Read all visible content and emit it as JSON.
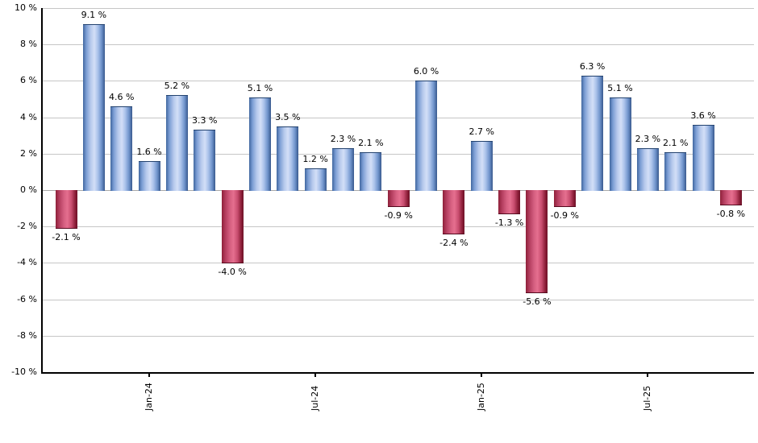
{
  "chart_data": {
    "type": "bar",
    "title": "",
    "unit": "%",
    "ylim": [
      -10,
      10
    ],
    "ytick_step": 2,
    "grid": true,
    "legend": "none",
    "yticks": [
      {
        "value": 10,
        "label": "10 %"
      },
      {
        "value": 8,
        "label": "8 %"
      },
      {
        "value": 6,
        "label": "6 %"
      },
      {
        "value": 4,
        "label": "4 %"
      },
      {
        "value": 2,
        "label": "2 %"
      },
      {
        "value": 0,
        "label": "0 %"
      },
      {
        "value": -2,
        "label": "-2 %"
      },
      {
        "value": -4,
        "label": "-4 %"
      },
      {
        "value": -6,
        "label": "-6 %"
      },
      {
        "value": -8,
        "label": "-8 %"
      },
      {
        "value": -10,
        "label": "-10 %"
      }
    ],
    "values": [
      -2.1,
      9.1,
      4.6,
      1.6,
      5.2,
      3.3,
      -4.0,
      5.1,
      3.5,
      1.2,
      2.3,
      2.1,
      -0.9,
      6.0,
      -2.4,
      2.7,
      -1.3,
      -5.6,
      -0.9,
      6.3,
      5.1,
      2.3,
      2.1,
      3.6,
      -0.8
    ],
    "bar_labels": [
      "-2.1 %",
      "9.1 %",
      "4.6 %",
      "1.6 %",
      "5.2 %",
      "3.3 %",
      "-4.0 %",
      "5.1 %",
      "3.5 %",
      "1.2 %",
      "2.3 %",
      "2.1 %",
      "-0.9 %",
      "6.0 %",
      "-2.4 %",
      "2.7 %",
      "-1.3 %",
      "-5.6 %",
      "-0.9 %",
      "6.3 %",
      "5.1 %",
      "2.3 %",
      "2.1 %",
      "3.6 %",
      "-0.8 %"
    ],
    "xticks": [
      {
        "label": "Jan-24",
        "bar_index": 3
      },
      {
        "label": "Jul-24",
        "bar_index": 9
      },
      {
        "label": "Jan-25",
        "bar_index": 15
      },
      {
        "label": "Jul-25",
        "bar_index": 21
      }
    ],
    "colors": {
      "positive_bar_edge": "#38598d",
      "positive_bar_highlight": "#d3dff7",
      "negative_bar_edge": "#6d1128",
      "negative_bar_highlight": "#e56f8f",
      "gridline": "#c6c6c6",
      "zero_line": "#a9a9a9",
      "axis": "#000000",
      "text": "#000000",
      "background": "#ffffff"
    }
  }
}
